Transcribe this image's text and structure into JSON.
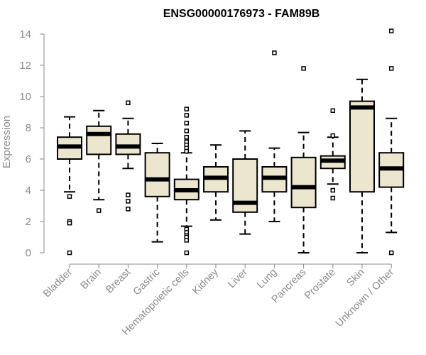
{
  "chart_data": {
    "type": "box",
    "title": "ENSG00000176973 - FAM89B",
    "xlabel": "",
    "ylabel": "Expression",
    "ylim": [
      0,
      14
    ],
    "yticks": [
      0,
      2,
      4,
      6,
      8,
      10,
      12,
      14
    ],
    "box_fill": "#ede6cf",
    "categories": [
      "Bladder",
      "Brain",
      "Breast",
      "Gastric",
      "Hematopoietic cells",
      "Kidney",
      "Liver",
      "Lung",
      "Pancreas",
      "Prostate",
      "Skin",
      "Unknown / Other"
    ],
    "boxes": [
      {
        "name": "Bladder",
        "whisker_low": 3.9,
        "q1": 6.0,
        "median": 6.8,
        "q3": 7.4,
        "whisker_high": 8.7,
        "outliers": [
          3.6,
          2.0,
          1.9,
          0.0
        ]
      },
      {
        "name": "Brain",
        "whisker_low": 3.4,
        "q1": 6.3,
        "median": 7.6,
        "q3": 8.1,
        "whisker_high": 9.1,
        "outliers": [
          2.7
        ]
      },
      {
        "name": "Breast",
        "whisker_low": 5.4,
        "q1": 6.3,
        "median": 6.8,
        "q3": 7.6,
        "whisker_high": 8.6,
        "outliers": [
          9.6,
          3.7,
          3.3,
          2.8
        ]
      },
      {
        "name": "Gastric",
        "whisker_low": 0.7,
        "q1": 3.6,
        "median": 4.7,
        "q3": 6.4,
        "whisker_high": 7.0,
        "outliers": []
      },
      {
        "name": "Hematopoietic cells",
        "whisker_low": 1.7,
        "q1": 3.4,
        "median": 4.0,
        "q3": 4.7,
        "whisker_high": 6.4,
        "outliers": [
          9.2,
          8.8,
          8.3,
          7.8,
          7.4,
          7.1,
          6.9,
          6.7,
          6.5,
          1.5,
          1.3,
          1.1,
          1.0,
          0.8,
          0.0
        ]
      },
      {
        "name": "Kidney",
        "whisker_low": 2.1,
        "q1": 3.9,
        "median": 4.8,
        "q3": 5.5,
        "whisker_high": 6.9,
        "outliers": []
      },
      {
        "name": "Liver",
        "whisker_low": 1.2,
        "q1": 2.6,
        "median": 3.2,
        "q3": 6.0,
        "whisker_high": 7.8,
        "outliers": []
      },
      {
        "name": "Lung",
        "whisker_low": 2.0,
        "q1": 3.9,
        "median": 4.8,
        "q3": 5.5,
        "whisker_high": 6.7,
        "outliers": [
          12.8
        ]
      },
      {
        "name": "Pancreas",
        "whisker_low": 0.0,
        "q1": 2.9,
        "median": 4.2,
        "q3": 6.1,
        "whisker_high": 7.7,
        "outliers": [
          11.8
        ]
      },
      {
        "name": "Prostate",
        "whisker_low": 4.4,
        "q1": 5.4,
        "median": 5.9,
        "q3": 6.2,
        "whisker_high": 7.4,
        "outliers": [
          9.1,
          7.5,
          4.0,
          3.5
        ]
      },
      {
        "name": "Skin",
        "whisker_low": 0.0,
        "q1": 3.9,
        "median": 9.3,
        "q3": 9.7,
        "whisker_high": 11.1,
        "outliers": []
      },
      {
        "name": "Unknown / Other",
        "whisker_low": 1.3,
        "q1": 4.2,
        "median": 5.4,
        "q3": 6.4,
        "whisker_high": 8.6,
        "outliers": [
          14.2,
          11.8,
          0.0
        ]
      }
    ]
  }
}
